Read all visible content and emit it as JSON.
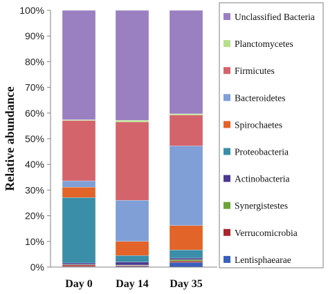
{
  "chart_data": {
    "type": "bar",
    "stacked": true,
    "percent": true,
    "ylabel": "Relative abundance",
    "xlabel": "",
    "ylim": [
      0,
      100
    ],
    "yticks": [
      "0%",
      "10%",
      "20%",
      "30%",
      "40%",
      "50%",
      "60%",
      "70%",
      "80%",
      "90%",
      "100%"
    ],
    "categories": [
      "Day 0",
      "Day 14",
      "Day 35"
    ],
    "legend_position": "right",
    "series": [
      {
        "name": "Lentisphaearae",
        "color": "#3a5ebc",
        "values": [
          0.2,
          0.3,
          1.8
        ]
      },
      {
        "name": "Verrucomicrobia",
        "color": "#a8262c",
        "values": [
          0.6,
          0.3,
          0.5
        ]
      },
      {
        "name": "Synergistestes",
        "color": "#6ea33a",
        "values": [
          0.2,
          0.2,
          0.6
        ]
      },
      {
        "name": "Actinobacteria",
        "color": "#4b3a8f",
        "values": [
          0.6,
          1.2,
          0.6
        ]
      },
      {
        "name": "Proteobacteria",
        "color": "#3a8ea8",
        "values": [
          25.5,
          2.5,
          3.2
        ]
      },
      {
        "name": "Spirochaetes",
        "color": "#e36428",
        "values": [
          4.0,
          5.5,
          9.5
        ]
      },
      {
        "name": "Bacteroidetes",
        "color": "#7f9fd6",
        "values": [
          2.5,
          16.0,
          31.0
        ]
      },
      {
        "name": "Firmicutes",
        "color": "#d4646c",
        "values": [
          23.5,
          30.5,
          12.0
        ]
      },
      {
        "name": "Planctomycetes",
        "color": "#b7de8a",
        "values": [
          0.3,
          0.7,
          0.5
        ]
      },
      {
        "name": "Unclassified Bacteria",
        "color": "#9a7fc1",
        "values": [
          42.6,
          42.8,
          40.3
        ]
      }
    ]
  }
}
